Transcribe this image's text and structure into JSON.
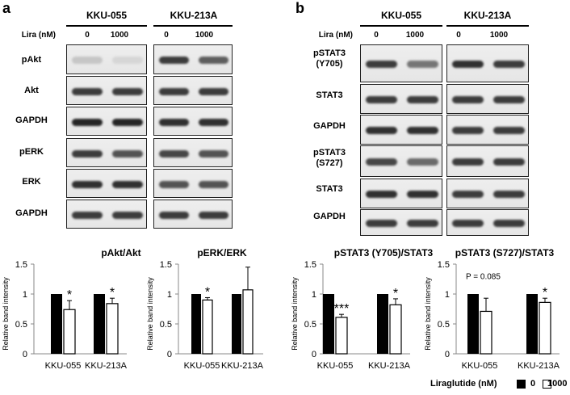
{
  "panels": {
    "a": {
      "label": "a",
      "lira_label": "Lira (nM)",
      "cells": [
        "KKU-055",
        "KKU-213A"
      ],
      "conc": [
        "0",
        "1000"
      ],
      "rows": [
        "pAkt",
        "Akt",
        "GAPDH",
        "pERK",
        "ERK",
        "GAPDH"
      ]
    },
    "b": {
      "label": "b",
      "lira_label": "Lira (nM)",
      "cells": [
        "KKU-055",
        "KKU-213A"
      ],
      "conc": [
        "0",
        "1000"
      ],
      "rows": [
        "pSTAT3\n(Y705)",
        "STAT3",
        "GAPDH",
        "pSTAT3\n(S727)",
        "STAT3",
        "GAPDH"
      ]
    }
  },
  "legend": {
    "title": "Liraglutide (nM)",
    "items": [
      {
        "label": "0",
        "color": "#000000"
      },
      {
        "label": "1000",
        "color": "#ffffff"
      }
    ]
  },
  "chart_data": [
    {
      "type": "bar",
      "title": "pAkt/Akt",
      "ylabel": "Relative band intensity",
      "ylim": [
        0,
        1.5
      ],
      "yticks": [
        "0",
        "0.5",
        "1",
        "1.5"
      ],
      "categories": [
        "KKU-055",
        "KKU-213A"
      ],
      "series": [
        {
          "name": "0",
          "values": [
            1.0,
            1.0
          ],
          "errors": [
            0,
            0
          ]
        },
        {
          "name": "1000",
          "values": [
            0.74,
            0.84
          ],
          "errors": [
            0.15,
            0.09
          ]
        }
      ],
      "annotations": [
        {
          "category": "KKU-055",
          "text": "*"
        },
        {
          "category": "KKU-213A",
          "text": "*"
        }
      ]
    },
    {
      "type": "bar",
      "title": "pERK/ERK",
      "ylabel": "Relative band intensity",
      "ylim": [
        0,
        1.5
      ],
      "yticks": [
        "0",
        "0.5",
        "1",
        "1.5"
      ],
      "categories": [
        "KKU-055",
        "KKU-213A"
      ],
      "series": [
        {
          "name": "0",
          "values": [
            1.0,
            1.0
          ],
          "errors": [
            0,
            0
          ]
        },
        {
          "name": "1000",
          "values": [
            0.9,
            1.07
          ],
          "errors": [
            0.04,
            0.38
          ]
        }
      ],
      "annotations": [
        {
          "category": "KKU-055",
          "text": "*"
        }
      ]
    },
    {
      "type": "bar",
      "title": "pSTAT3 (Y705)/STAT3",
      "ylabel": "Relative band intensity",
      "ylim": [
        0,
        1.5
      ],
      "yticks": [
        "0",
        "0.5",
        "1",
        "1.5"
      ],
      "categories": [
        "KKU-055",
        "KKU-213A"
      ],
      "series": [
        {
          "name": "0",
          "values": [
            1.0,
            1.0
          ],
          "errors": [
            0,
            0
          ]
        },
        {
          "name": "1000",
          "values": [
            0.61,
            0.82
          ],
          "errors": [
            0.05,
            0.1
          ]
        }
      ],
      "annotations": [
        {
          "category": "KKU-055",
          "text": "***"
        },
        {
          "category": "KKU-213A",
          "text": "*"
        }
      ]
    },
    {
      "type": "bar",
      "title": "pSTAT3 (S727)/STAT3",
      "ylabel": "Relative band intensity",
      "ylim": [
        0,
        1.5
      ],
      "yticks": [
        "0",
        "0.5",
        "1",
        "1.5"
      ],
      "categories": [
        "KKU-055",
        "KKU-213A"
      ],
      "series": [
        {
          "name": "0",
          "values": [
            1.0,
            1.0
          ],
          "errors": [
            0,
            0
          ]
        },
        {
          "name": "1000",
          "values": [
            0.71,
            0.86
          ],
          "errors": [
            0.22,
            0.07
          ]
        }
      ],
      "annotations": [
        {
          "category": "KKU-213A",
          "text": "*"
        }
      ],
      "note": "P = 0.085"
    }
  ]
}
